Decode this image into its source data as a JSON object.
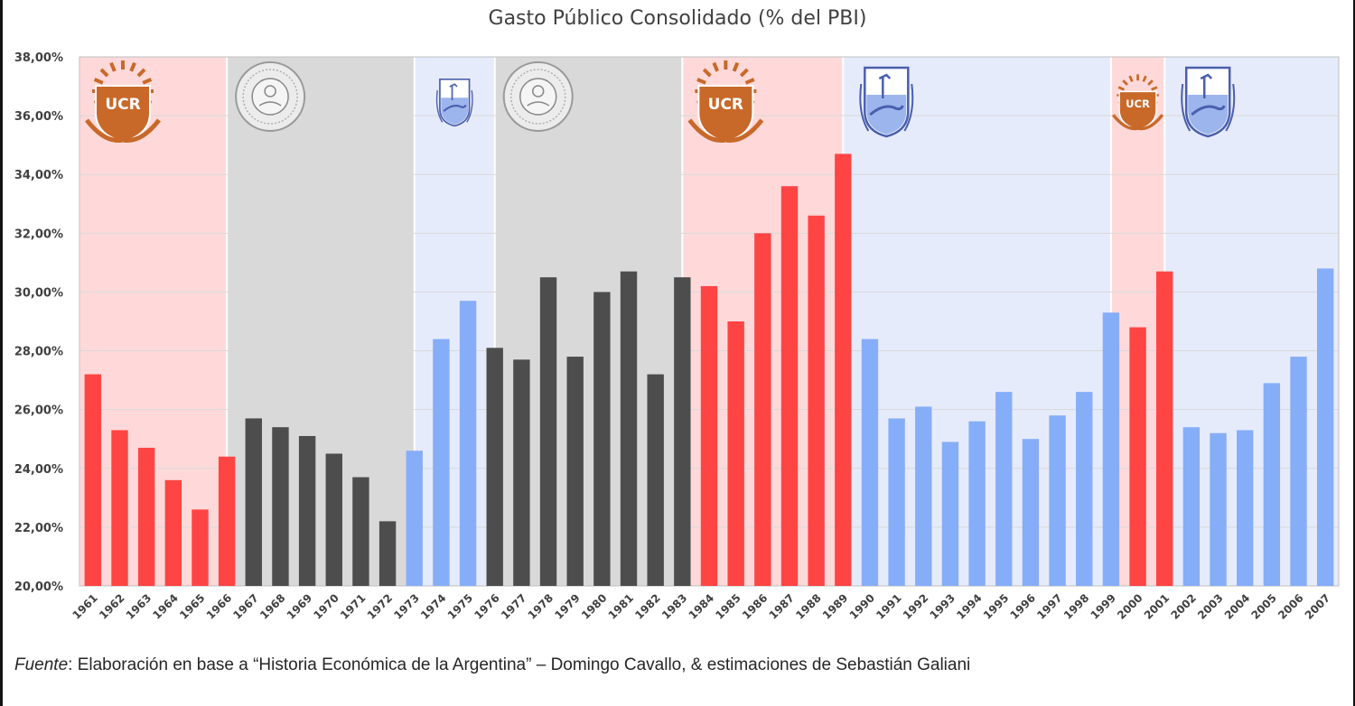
{
  "chart_data": {
    "type": "bar",
    "title": "Gasto Público Consolidado (% del PBI)",
    "xlabel": "",
    "ylabel": "",
    "ylim": [
      20,
      38
    ],
    "yticks": [
      "20,00%",
      "22,00%",
      "24,00%",
      "26,00%",
      "28,00%",
      "30,00%",
      "32,00%",
      "34,00%",
      "36,00%",
      "38,00%"
    ],
    "grid": true,
    "categories": [
      "1961",
      "1962",
      "1963",
      "1964",
      "1965",
      "1966",
      "1967",
      "1968",
      "1969",
      "1970",
      "1971",
      "1972",
      "1973",
      "1974",
      "1975",
      "1976",
      "1977",
      "1978",
      "1979",
      "1980",
      "1981",
      "1982",
      "1983",
      "1984",
      "1985",
      "1986",
      "1987",
      "1988",
      "1989",
      "1990",
      "1991",
      "1992",
      "1993",
      "1994",
      "1995",
      "1996",
      "1997",
      "1998",
      "1999",
      "2000",
      "2001",
      "2002",
      "2003",
      "2004",
      "2005",
      "2006",
      "2007"
    ],
    "values": [
      27.2,
      25.3,
      24.7,
      23.6,
      22.6,
      24.4,
      25.7,
      25.4,
      25.1,
      24.5,
      23.7,
      22.2,
      24.6,
      28.4,
      29.7,
      28.1,
      27.7,
      30.5,
      27.8,
      30.0,
      30.7,
      27.2,
      30.5,
      30.2,
      29.0,
      32.0,
      33.6,
      32.6,
      34.7,
      28.4,
      25.7,
      26.1,
      24.9,
      25.6,
      26.6,
      25.0,
      25.8,
      26.6,
      29.3,
      28.8,
      30.7,
      25.4,
      25.2,
      25.3,
      26.9,
      27.8,
      30.8
    ],
    "periods": [
      {
        "start": "1961",
        "end": "1966",
        "group": "ucr",
        "logo": "ucr-shield-icon"
      },
      {
        "start": "1966",
        "end": "1973",
        "group": "military",
        "logo": "national-seal-icon"
      },
      {
        "start": "1973",
        "end": "1976",
        "group": "pj",
        "logo": "pj-shield-icon"
      },
      {
        "start": "1976",
        "end": "1983",
        "group": "military",
        "logo": "national-seal-icon"
      },
      {
        "start": "1983",
        "end": "1989",
        "group": "ucr",
        "logo": "ucr-shield-icon"
      },
      {
        "start": "1989",
        "end": "1999",
        "group": "pj",
        "logo": "pj-shield-icon"
      },
      {
        "start": "1999",
        "end": "2001",
        "group": "ucr",
        "logo": "ucr-shield-icon"
      },
      {
        "start": "2001",
        "end": "2007",
        "group": "pj",
        "logo": "pj-shield-icon"
      }
    ],
    "bar_groups": [
      "ucr",
      "ucr",
      "ucr",
      "ucr",
      "ucr",
      "ucr",
      "military",
      "military",
      "military",
      "military",
      "military",
      "military",
      "pj",
      "pj",
      "pj",
      "military",
      "military",
      "military",
      "military",
      "military",
      "military",
      "military",
      "military",
      "ucr",
      "ucr",
      "ucr",
      "ucr",
      "ucr",
      "ucr",
      "pj",
      "pj",
      "pj",
      "pj",
      "pj",
      "pj",
      "pj",
      "pj",
      "pj",
      "pj",
      "ucr",
      "ucr",
      "pj",
      "pj",
      "pj",
      "pj",
      "pj",
      "pj"
    ],
    "colors": {
      "ucr": {
        "bar": "#ff4444",
        "band": "#ffd9d9"
      },
      "military": {
        "bar": "#4d4d4d",
        "band": "#d9d9d9"
      },
      "pj": {
        "bar": "#86adf7",
        "band": "#e6ebfb"
      },
      "grid": "#d9d9d9",
      "ucr_logo": "#c8692a"
    },
    "logo_text": "UCR"
  },
  "source": {
    "label": "Fuente",
    "text": ": Elaboración en base a “Historia Económica de la Argentina” – Domingo Cavallo, & estimaciones de Sebastián Galiani"
  }
}
